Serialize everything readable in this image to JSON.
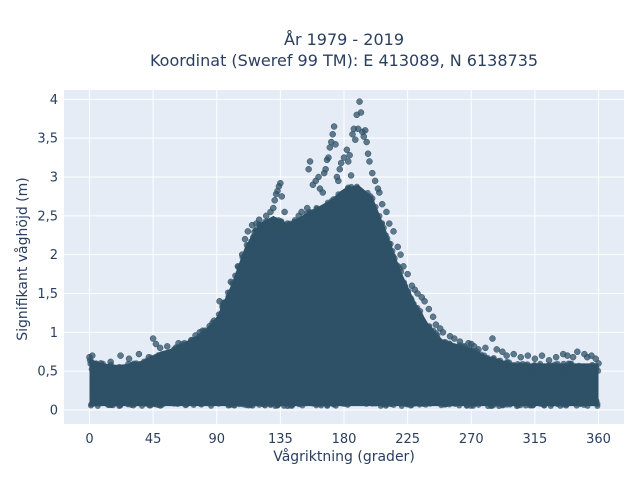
{
  "chart_data": {
    "type": "scatter",
    "title_line1": "År 1979 - 2019",
    "title_line2": "Koordinat (Sweref 99 TM): E 413089, N 6138735",
    "xlabel": "Vågriktning (grader)",
    "ylabel": "Signifikant våghöjd (m)",
    "xlim": [
      -18,
      378
    ],
    "ylim": [
      -0.18,
      4.12
    ],
    "xticks": [
      0,
      45,
      90,
      135,
      180,
      225,
      270,
      315,
      360
    ],
    "xtick_labels": [
      "0",
      "45",
      "90",
      "135",
      "180",
      "225",
      "270",
      "315",
      "360"
    ],
    "yticks": [
      0,
      0.5,
      1,
      1.5,
      2,
      2.5,
      3,
      3.5,
      4
    ],
    "ytick_labels": [
      "0",
      "0,5",
      "1",
      "1,5",
      "2",
      "2,5",
      "3",
      "3,5",
      "4"
    ],
    "grid": true,
    "background": "#e5ecf6",
    "marker_color": "#2f5167",
    "envelope": {
      "x": [
        0,
        10,
        20,
        30,
        40,
        50,
        60,
        70,
        80,
        90,
        100,
        110,
        120,
        130,
        140,
        150,
        160,
        170,
        180,
        190,
        200,
        210,
        220,
        230,
        240,
        250,
        260,
        270,
        280,
        290,
        300,
        310,
        320,
        330,
        340,
        350,
        360
      ],
      "y_upper": [
        0.65,
        0.6,
        0.58,
        0.6,
        0.65,
        0.75,
        0.8,
        0.9,
        1.0,
        1.2,
        1.6,
        2.1,
        2.4,
        2.5,
        2.4,
        2.5,
        2.6,
        2.7,
        2.85,
        2.9,
        2.75,
        2.3,
        1.8,
        1.4,
        1.1,
        0.9,
        0.85,
        0.8,
        0.7,
        0.65,
        0.6,
        0.6,
        0.6,
        0.6,
        0.6,
        0.6,
        0.6
      ],
      "y_lower": [
        0.05,
        0.05,
        0.05,
        0.05,
        0.05,
        0.05,
        0.05,
        0.05,
        0.05,
        0.05,
        0.05,
        0.05,
        0.05,
        0.05,
        0.05,
        0.05,
        0.05,
        0.05,
        0.05,
        0.05,
        0.05,
        0.05,
        0.05,
        0.05,
        0.05,
        0.05,
        0.05,
        0.05,
        0.05,
        0.05,
        0.05,
        0.05,
        0.05,
        0.05,
        0.05,
        0.05,
        0.05
      ]
    },
    "points": [
      [
        0,
        0.68
      ],
      [
        2,
        0.7
      ],
      [
        8,
        0.6
      ],
      [
        15,
        0.62
      ],
      [
        22,
        0.7
      ],
      [
        28,
        0.66
      ],
      [
        35,
        0.72
      ],
      [
        42,
        0.68
      ],
      [
        45,
        0.92
      ],
      [
        47,
        0.85
      ],
      [
        50,
        0.8
      ],
      [
        55,
        0.82
      ],
      [
        60,
        0.78
      ],
      [
        63,
        0.86
      ],
      [
        68,
        0.82
      ],
      [
        72,
        0.9
      ],
      [
        75,
        0.96
      ],
      [
        78,
        1.0
      ],
      [
        80,
        1.02
      ],
      [
        85,
        1.08
      ],
      [
        87,
        1.12
      ],
      [
        88,
        1.15
      ],
      [
        92,
        1.4
      ],
      [
        95,
        1.38
      ],
      [
        100,
        1.65
      ],
      [
        105,
        1.85
      ],
      [
        108,
        2.0
      ],
      [
        110,
        2.2
      ],
      [
        112,
        2.3
      ],
      [
        115,
        2.38
      ],
      [
        118,
        2.4
      ],
      [
        120,
        2.45
      ],
      [
        125,
        2.5
      ],
      [
        128,
        2.55
      ],
      [
        130,
        2.6
      ],
      [
        131,
        2.7
      ],
      [
        132,
        2.78
      ],
      [
        133,
        2.82
      ],
      [
        134,
        2.88
      ],
      [
        135,
        2.92
      ],
      [
        136,
        2.75
      ],
      [
        138,
        2.55
      ],
      [
        140,
        2.4
      ],
      [
        143,
        2.3
      ],
      [
        145,
        2.42
      ],
      [
        148,
        2.5
      ],
      [
        150,
        2.55
      ],
      [
        152,
        2.45
      ],
      [
        154,
        2.6
      ],
      [
        155,
        3.1
      ],
      [
        156,
        3.2
      ],
      [
        158,
        2.9
      ],
      [
        160,
        2.95
      ],
      [
        162,
        3.0
      ],
      [
        163,
        2.85
      ],
      [
        165,
        2.8
      ],
      [
        166,
        3.05
      ],
      [
        167,
        3.1
      ],
      [
        168,
        3.22
      ],
      [
        169,
        3.25
      ],
      [
        170,
        3.38
      ],
      [
        171,
        3.45
      ],
      [
        172,
        3.55
      ],
      [
        173,
        3.65
      ],
      [
        174,
        3.42
      ],
      [
        175,
        3.0
      ],
      [
        176,
        2.95
      ],
      [
        177,
        3.1
      ],
      [
        178,
        3.18
      ],
      [
        180,
        3.25
      ],
      [
        182,
        3.35
      ],
      [
        183,
        3.2
      ],
      [
        184,
        3.28
      ],
      [
        185,
        3.02
      ],
      [
        186,
        3.55
      ],
      [
        187,
        3.62
      ],
      [
        188,
        3.48
      ],
      [
        189,
        3.8
      ],
      [
        190,
        3.62
      ],
      [
        191,
        3.97
      ],
      [
        192,
        3.83
      ],
      [
        193,
        3.58
      ],
      [
        194,
        3.52
      ],
      [
        195,
        3.6
      ],
      [
        196,
        3.45
      ],
      [
        197,
        3.3
      ],
      [
        198,
        3.2
      ],
      [
        200,
        3.05
      ],
      [
        202,
        2.95
      ],
      [
        204,
        2.85
      ],
      [
        205,
        2.8
      ],
      [
        207,
        2.65
      ],
      [
        210,
        2.55
      ],
      [
        212,
        2.4
      ],
      [
        215,
        2.3
      ],
      [
        218,
        2.1
      ],
      [
        220,
        2.0
      ],
      [
        222,
        1.85
      ],
      [
        225,
        1.75
      ],
      [
        228,
        1.6
      ],
      [
        230,
        1.55
      ],
      [
        232,
        1.5
      ],
      [
        235,
        1.45
      ],
      [
        237,
        1.4
      ],
      [
        240,
        1.3
      ],
      [
        243,
        1.2
      ],
      [
        245,
        1.1
      ],
      [
        248,
        1.05
      ],
      [
        250,
        1.0
      ],
      [
        255,
        0.95
      ],
      [
        258,
        0.92
      ],
      [
        262,
        0.88
      ],
      [
        265,
        0.82
      ],
      [
        268,
        0.86
      ],
      [
        270,
        0.85
      ],
      [
        272,
        0.82
      ],
      [
        275,
        0.78
      ],
      [
        280,
        0.8
      ],
      [
        285,
        0.92
      ],
      [
        288,
        0.78
      ],
      [
        292,
        0.75
      ],
      [
        295,
        0.7
      ],
      [
        300,
        0.72
      ],
      [
        305,
        0.68
      ],
      [
        310,
        0.7
      ],
      [
        315,
        0.66
      ],
      [
        320,
        0.7
      ],
      [
        325,
        0.64
      ],
      [
        330,
        0.68
      ],
      [
        335,
        0.72
      ],
      [
        338,
        0.7
      ],
      [
        342,
        0.68
      ],
      [
        345,
        0.75
      ],
      [
        350,
        0.72
      ],
      [
        352,
        0.68
      ],
      [
        355,
        0.7
      ],
      [
        358,
        0.66
      ],
      [
        360,
        0.6
      ]
    ]
  }
}
